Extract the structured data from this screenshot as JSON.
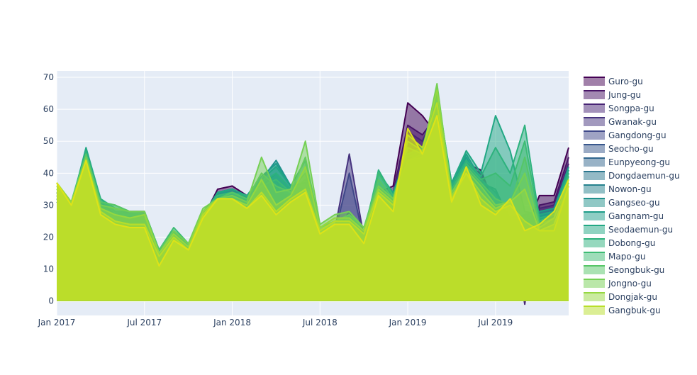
{
  "chart_data": {
    "type": "area",
    "title": "",
    "xlabel": "",
    "ylabel": "",
    "x_ticks": [
      "Jan 2017",
      "Jul 2017",
      "Jan 2018",
      "Jul 2018",
      "Jan 2019",
      "Jul 2019"
    ],
    "y_ticks": [
      "0",
      "10",
      "20",
      "30",
      "40",
      "50",
      "60",
      "70"
    ],
    "ylim": [
      -4.5,
      72
    ],
    "xlim": [
      "2017-01",
      "2019-12"
    ],
    "grid": true,
    "legend_position": "right",
    "x": [
      "2017-01",
      "2017-02",
      "2017-03",
      "2017-04",
      "2017-05",
      "2017-06",
      "2017-07",
      "2017-08",
      "2017-09",
      "2017-10",
      "2017-11",
      "2017-12",
      "2018-01",
      "2018-02",
      "2018-03",
      "2018-04",
      "2018-05",
      "2018-06",
      "2018-07",
      "2018-08",
      "2018-09",
      "2018-10",
      "2018-11",
      "2018-12",
      "2019-01",
      "2019-02",
      "2019-03",
      "2019-04",
      "2019-05",
      "2019-06",
      "2019-07",
      "2019-08",
      "2019-09",
      "2019-10",
      "2019-11",
      "2019-12"
    ],
    "series": [
      {
        "name": "Guro-gu",
        "color": "#440154",
        "values": [
          34,
          29,
          46,
          31,
          27,
          28,
          28,
          15,
          22,
          17,
          26,
          35,
          36,
          33,
          37,
          34,
          33,
          35,
          21,
          22,
          23,
          20,
          34,
          36,
          62,
          58,
          52,
          36,
          43,
          41,
          29,
          25,
          21,
          33,
          33,
          48
        ]
      },
      {
        "name": "Jung-gu",
        "color": "#471466",
        "values": [
          33,
          30,
          45,
          30,
          27,
          27,
          27,
          15,
          21,
          17,
          25,
          34,
          35,
          32,
          36,
          33,
          31,
          34,
          20,
          22,
          22,
          20,
          33,
          34,
          55,
          52,
          58,
          35,
          42,
          40,
          28,
          26,
          0,
          30,
          31,
          45
        ]
      },
      {
        "name": "Songpa-gu",
        "color": "#482475",
        "values": [
          32,
          29,
          44,
          29,
          26,
          26,
          26,
          15,
          21,
          16,
          25,
          33,
          34,
          32,
          35,
          32,
          30,
          32,
          20,
          21,
          21,
          19,
          32,
          33,
          53,
          50,
          60,
          34,
          41,
          38,
          28,
          25,
          -1,
          29,
          30,
          43
        ]
      },
      {
        "name": "Gwanak-gu",
        "color": "#46337e",
        "values": [
          33,
          29,
          45,
          30,
          27,
          27,
          27,
          14,
          21,
          16,
          25,
          33,
          34,
          32,
          36,
          31,
          30,
          33,
          20,
          22,
          46,
          20,
          33,
          34,
          50,
          48,
          55,
          35,
          41,
          38,
          28,
          24,
          27,
          28,
          29,
          42
        ]
      },
      {
        "name": "Gangdong-gu",
        "color": "#3f4889",
        "values": [
          32,
          28,
          44,
          29,
          26,
          26,
          26,
          14,
          21,
          16,
          25,
          33,
          33,
          31,
          35,
          31,
          29,
          32,
          20,
          21,
          40,
          19,
          32,
          32,
          47,
          45,
          53,
          34,
          40,
          37,
          27,
          24,
          25,
          27,
          28,
          40
        ]
      },
      {
        "name": "Seocho-gu",
        "color": "#38578c",
        "values": [
          31,
          28,
          43,
          28,
          25,
          25,
          25,
          14,
          20,
          16,
          24,
          32,
          33,
          31,
          34,
          30,
          29,
          31,
          19,
          21,
          28,
          18,
          31,
          31,
          45,
          44,
          52,
          33,
          39,
          36,
          27,
          23,
          24,
          26,
          27,
          39
        ]
      },
      {
        "name": "Eunpyeong-gu",
        "color": "#31668e",
        "values": [
          32,
          29,
          44,
          29,
          26,
          26,
          26,
          15,
          21,
          16,
          25,
          33,
          33,
          32,
          36,
          36,
          30,
          33,
          20,
          21,
          26,
          19,
          32,
          32,
          44,
          45,
          55,
          34,
          40,
          37,
          27,
          24,
          25,
          27,
          28,
          40
        ]
      },
      {
        "name": "Dongdaemun-gu",
        "color": "#2a768e",
        "values": [
          31,
          28,
          43,
          28,
          25,
          25,
          25,
          14,
          20,
          16,
          24,
          32,
          33,
          31,
          35,
          38,
          29,
          32,
          19,
          21,
          25,
          18,
          31,
          31,
          43,
          44,
          54,
          33,
          39,
          36,
          27,
          23,
          24,
          26,
          27,
          39
        ]
      },
      {
        "name": "Nowon-gu",
        "color": "#26828e",
        "values": [
          32,
          29,
          45,
          29,
          26,
          26,
          26,
          15,
          21,
          16,
          25,
          33,
          33,
          32,
          36,
          40,
          35,
          33,
          20,
          22,
          25,
          19,
          33,
          32,
          44,
          45,
          57,
          35,
          41,
          37,
          28,
          24,
          25,
          27,
          28,
          40
        ]
      },
      {
        "name": "Gangseo-gu",
        "color": "#21918c",
        "values": [
          33,
          30,
          46,
          30,
          27,
          27,
          27,
          15,
          22,
          17,
          26,
          34,
          34,
          33,
          38,
          44,
          36,
          35,
          21,
          22,
          25,
          20,
          34,
          33,
          45,
          46,
          60,
          36,
          45,
          37,
          35,
          25,
          26,
          28,
          29,
          41
        ]
      },
      {
        "name": "Gangnam-gu",
        "color": "#1e9d89",
        "values": [
          34,
          30,
          47,
          31,
          28,
          28,
          28,
          16,
          22,
          17,
          26,
          34,
          35,
          33,
          39,
          43,
          36,
          37,
          21,
          22,
          26,
          20,
          35,
          34,
          46,
          47,
          62,
          36,
          46,
          38,
          34,
          26,
          27,
          28,
          29,
          42
        ]
      },
      {
        "name": "Seodaemun-gu",
        "color": "#22a884",
        "values": [
          33,
          30,
          48,
          32,
          28,
          27,
          27,
          16,
          22,
          17,
          27,
          34,
          35,
          33,
          38,
          42,
          36,
          44,
          21,
          22,
          26,
          20,
          40,
          34,
          46,
          48,
          65,
          37,
          47,
          40,
          58,
          47,
          28,
          27,
          28,
          41
        ]
      },
      {
        "name": "Dobong-gu",
        "color": "#2db27d",
        "values": [
          34,
          31,
          47,
          32,
          29,
          28,
          27,
          16,
          22,
          18,
          28,
          33,
          34,
          33,
          37,
          40,
          35,
          40,
          22,
          23,
          26,
          21,
          41,
          33,
          45,
          47,
          66,
          36,
          44,
          39,
          48,
          40,
          55,
          26,
          27,
          40
        ]
      },
      {
        "name": "Mapo-gu",
        "color": "#3dbc74",
        "values": [
          35,
          31,
          46,
          31,
          30,
          28,
          27,
          16,
          23,
          18,
          28,
          33,
          34,
          32,
          36,
          38,
          34,
          38,
          22,
          24,
          27,
          22,
          40,
          33,
          44,
          46,
          67,
          35,
          43,
          38,
          40,
          36,
          50,
          25,
          27,
          39
        ]
      },
      {
        "name": "Seongbuk-gu",
        "color": "#56c667",
        "values": [
          36,
          31,
          46,
          31,
          30,
          28,
          28,
          16,
          22,
          18,
          28,
          32,
          34,
          32,
          40,
          36,
          34,
          45,
          23,
          25,
          27,
          23,
          38,
          32,
          44,
          45,
          67,
          34,
          42,
          37,
          32,
          30,
          45,
          24,
          26,
          38
        ]
      },
      {
        "name": "Jongno-gu",
        "color": "#75d054",
        "values": [
          37,
          31,
          45,
          30,
          29,
          28,
          28,
          15,
          22,
          18,
          29,
          32,
          33,
          31,
          45,
          34,
          35,
          50,
          24,
          27,
          28,
          23,
          36,
          32,
          48,
          46,
          68,
          34,
          41,
          36,
          30,
          31,
          40,
          23,
          26,
          37
        ]
      },
      {
        "name": "Dongjak-gu",
        "color": "#95d840",
        "values": [
          37,
          31,
          44,
          29,
          27,
          26,
          27,
          15,
          21,
          17,
          28,
          32,
          32,
          30,
          38,
          30,
          33,
          42,
          23,
          26,
          26,
          22,
          35,
          31,
          50,
          47,
          66,
          33,
          40,
          34,
          29,
          31,
          35,
          22,
          24,
          36
        ]
      },
      {
        "name": "Gangbuk-gu",
        "color": "#b8de29",
        "values": [
          37,
          30,
          44,
          28,
          25,
          24,
          24,
          14,
          20,
          16,
          27,
          32,
          32,
          29,
          34,
          28,
          32,
          35,
          22,
          25,
          25,
          21,
          34,
          30,
          52,
          48,
          62,
          32,
          40,
          32,
          28,
          30,
          25,
          22,
          22,
          36
        ]
      },
      {
        "name": "",
        "color": "#dde318",
        "values": [
          37,
          30,
          44,
          27,
          24,
          23,
          23,
          11,
          19,
          16,
          26,
          32,
          32,
          29,
          33,
          27,
          31,
          34,
          21,
          24,
          24,
          18,
          33,
          28,
          54,
          46,
          58,
          31,
          42,
          30,
          27,
          32,
          22,
          24,
          28,
          38
        ]
      }
    ]
  }
}
